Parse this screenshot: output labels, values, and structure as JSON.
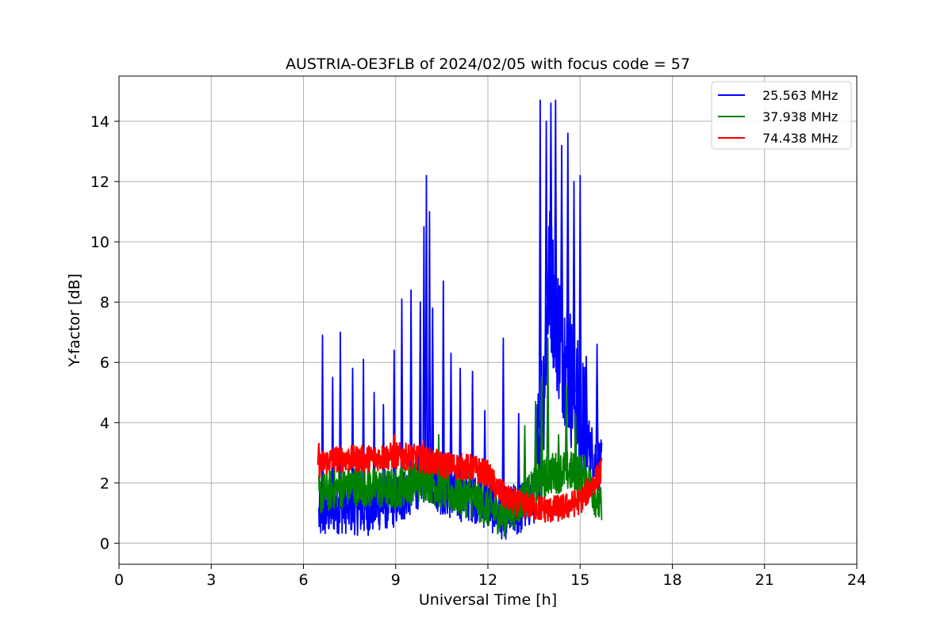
{
  "chart_data": {
    "type": "line",
    "title": "AUSTRIA-OE3FLB of 2024/02/05 with focus code = 57",
    "xlabel": "Universal Time [h]",
    "ylabel": "Y-factor [dB]",
    "xlim": [
      0,
      24
    ],
    "ylim": [
      -0.7,
      15.5
    ],
    "xticks": [
      0,
      3,
      6,
      9,
      12,
      15,
      18,
      21,
      24
    ],
    "yticks": [
      0,
      2,
      4,
      6,
      8,
      10,
      12,
      14
    ],
    "grid": true,
    "legend_position": "top-right",
    "series": [
      {
        "name": "25.563 MHz",
        "color": "#0000ff",
        "baseline": [
          [
            6.5,
            0.9
          ],
          [
            7.0,
            1.2
          ],
          [
            7.5,
            1.2
          ],
          [
            8.0,
            1.1
          ],
          [
            8.5,
            1.3
          ],
          [
            9.0,
            1.4
          ],
          [
            9.5,
            1.8
          ],
          [
            10.0,
            2.3
          ],
          [
            10.5,
            1.8
          ],
          [
            11.0,
            1.6
          ],
          [
            11.5,
            1.6
          ],
          [
            12.0,
            1.3
          ],
          [
            12.5,
            1.0
          ],
          [
            13.0,
            1.1
          ],
          [
            13.5,
            1.5
          ],
          [
            13.8,
            5.0
          ],
          [
            14.0,
            9.0
          ],
          [
            14.3,
            7.0
          ],
          [
            14.6,
            6.0
          ],
          [
            14.9,
            4.5
          ],
          [
            15.2,
            3.5
          ],
          [
            15.5,
            2.8
          ],
          [
            15.7,
            2.5
          ]
        ],
        "spikes": [
          [
            6.62,
            6.9
          ],
          [
            6.95,
            5.5
          ],
          [
            7.2,
            7.0
          ],
          [
            7.6,
            5.8
          ],
          [
            7.95,
            6.1
          ],
          [
            8.3,
            5.0
          ],
          [
            8.6,
            4.6
          ],
          [
            8.95,
            6.4
          ],
          [
            9.2,
            8.1
          ],
          [
            9.5,
            8.4
          ],
          [
            9.8,
            8.0
          ],
          [
            9.92,
            10.5
          ],
          [
            10.0,
            12.2
          ],
          [
            10.1,
            11.0
          ],
          [
            10.2,
            7.8
          ],
          [
            10.55,
            8.7
          ],
          [
            10.8,
            6.3
          ],
          [
            11.1,
            5.8
          ],
          [
            11.5,
            5.7
          ],
          [
            11.9,
            4.4
          ],
          [
            12.5,
            6.8
          ],
          [
            13.0,
            4.3
          ],
          [
            13.7,
            14.7
          ],
          [
            13.9,
            14.0
          ],
          [
            14.05,
            14.6
          ],
          [
            14.2,
            14.7
          ],
          [
            14.4,
            13.2
          ],
          [
            14.6,
            13.6
          ],
          [
            14.8,
            12.0
          ],
          [
            15.0,
            12.2
          ],
          [
            15.2,
            6.2
          ],
          [
            15.55,
            6.6
          ]
        ]
      },
      {
        "name": "37.938 MHz",
        "color": "#008000",
        "baseline": [
          [
            6.5,
            1.6
          ],
          [
            7.0,
            1.8
          ],
          [
            7.5,
            1.9
          ],
          [
            8.0,
            1.9
          ],
          [
            8.5,
            1.8
          ],
          [
            9.0,
            1.8
          ],
          [
            9.5,
            2.0
          ],
          [
            10.0,
            2.1
          ],
          [
            10.5,
            1.8
          ],
          [
            11.0,
            1.6
          ],
          [
            11.5,
            1.5
          ],
          [
            12.0,
            1.2
          ],
          [
            12.5,
            0.9
          ],
          [
            13.0,
            1.3
          ],
          [
            13.5,
            1.8
          ],
          [
            14.0,
            2.3
          ],
          [
            14.5,
            2.4
          ],
          [
            15.0,
            2.3
          ],
          [
            15.3,
            2.0
          ],
          [
            15.7,
            1.1
          ]
        ],
        "spikes": [
          [
            9.2,
            3.1
          ],
          [
            10.4,
            3.6
          ],
          [
            11.4,
            2.6
          ],
          [
            13.2,
            3.9
          ],
          [
            13.55,
            4.7
          ],
          [
            13.75,
            5.5
          ],
          [
            13.95,
            6.8
          ],
          [
            14.3,
            3.6
          ],
          [
            14.55,
            5.2
          ],
          [
            14.85,
            4.3
          ],
          [
            15.15,
            2.9
          ]
        ]
      },
      {
        "name": "74.438 MHz",
        "color": "#ff0000",
        "baseline": [
          [
            6.5,
            2.6
          ],
          [
            7.0,
            2.8
          ],
          [
            7.5,
            2.8
          ],
          [
            8.0,
            2.8
          ],
          [
            8.5,
            2.85
          ],
          [
            9.0,
            2.9
          ],
          [
            9.5,
            2.85
          ],
          [
            10.0,
            2.75
          ],
          [
            10.5,
            2.6
          ],
          [
            11.0,
            2.55
          ],
          [
            11.5,
            2.5
          ],
          [
            12.0,
            2.3
          ],
          [
            12.3,
            1.8
          ],
          [
            12.6,
            1.5
          ],
          [
            13.0,
            1.3
          ],
          [
            13.5,
            1.2
          ],
          [
            14.0,
            1.1
          ],
          [
            14.5,
            1.2
          ],
          [
            15.0,
            1.4
          ],
          [
            15.3,
            1.8
          ],
          [
            15.7,
            2.4
          ]
        ],
        "spikes": [
          [
            8.95,
            3.6
          ],
          [
            9.9,
            3.4
          ],
          [
            6.5,
            3.3
          ]
        ]
      }
    ]
  }
}
